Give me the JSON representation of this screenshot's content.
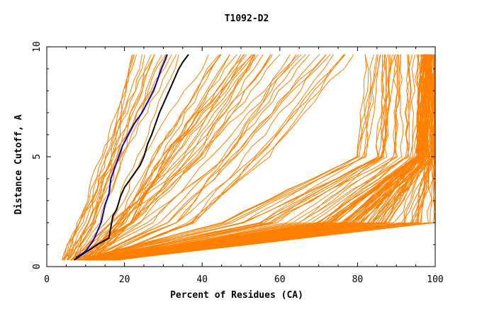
{
  "chart_data": {
    "type": "line",
    "title": "T1092-D2",
    "xlabel": "Percent of Residues (CA)",
    "ylabel": "Distance Cutoff, A",
    "xlim": [
      0,
      100
    ],
    "ylim": [
      0,
      10
    ],
    "x_ticks": [
      0,
      20,
      40,
      60,
      80,
      100
    ],
    "y_ticks": [
      0,
      5,
      10
    ],
    "grid": false,
    "legend": "none",
    "colors": {
      "models": "#ff8000",
      "highlight_black": "#000000",
      "highlight_blue": "#0000cc",
      "axes": "#000000"
    },
    "highlighted_series": [
      {
        "color": "#000000",
        "points": [
          [
            7.0,
            0.3
          ],
          [
            10,
            0.65
          ],
          [
            13,
            1.0
          ],
          [
            16,
            1.3
          ],
          [
            17,
            2.3
          ],
          [
            18,
            2.6
          ],
          [
            19,
            3.2
          ],
          [
            20,
            3.6
          ],
          [
            22,
            4.1
          ],
          [
            24,
            4.6
          ],
          [
            25,
            5.0
          ],
          [
            26,
            5.6
          ],
          [
            27,
            6.0
          ],
          [
            28,
            6.5
          ],
          [
            29,
            7.0
          ],
          [
            30,
            7.4
          ],
          [
            31,
            7.8
          ],
          [
            32,
            8.2
          ],
          [
            33,
            8.6
          ],
          [
            34,
            9.0
          ],
          [
            35,
            9.3
          ],
          [
            36.5,
            9.65
          ]
        ]
      },
      {
        "color": "#0000cc",
        "points": [
          [
            7.5,
            0.4
          ],
          [
            10,
            0.7
          ],
          [
            12,
            1.2
          ],
          [
            14,
            2.0
          ],
          [
            15,
            2.8
          ],
          [
            16,
            3.3
          ],
          [
            16.5,
            4.0
          ],
          [
            17.5,
            4.5
          ],
          [
            18.5,
            5.0
          ],
          [
            19.5,
            5.5
          ],
          [
            21,
            6.0
          ],
          [
            22.5,
            6.5
          ],
          [
            24.5,
            7.0
          ],
          [
            26,
            7.5
          ],
          [
            27.5,
            8.0
          ],
          [
            28.5,
            8.5
          ],
          [
            29.5,
            9.0
          ],
          [
            30.5,
            9.4
          ],
          [
            31,
            9.65
          ]
        ]
      }
    ],
    "model_series": {
      "count": 160,
      "groups": [
        {
          "name": "",
          "count": 30,
          "x_at_0_3": [
            4,
            12
          ],
          "x_at_2": [
            8,
            22
          ],
          "x_at_5": [
            14,
            34
          ],
          "x_at_9_65": [
            22,
            54
          ]
        },
        {
          "name": "",
          "count": 25,
          "x_at_0_3": [
            5,
            14
          ],
          "x_at_2": [
            14,
            40
          ],
          "x_at_5": [
            30,
            58
          ],
          "x_at_9_65": [
            50,
            80
          ]
        },
        {
          "name": "",
          "count": 45,
          "x_at_0_3": [
            8,
            16
          ],
          "x_at_2": [
            45,
            85
          ],
          "x_at_5": [
            80,
            100
          ],
          "x_at_9_65": [
            82,
            100
          ]
        },
        {
          "name": "",
          "count": 60,
          "x_at_0_3": [
            10,
            18
          ],
          "x_at_2": [
            70,
            100
          ],
          "x_at_5": [
            95,
            100
          ],
          "x_at_9_65": [
            97,
            100
          ]
        }
      ]
    }
  }
}
